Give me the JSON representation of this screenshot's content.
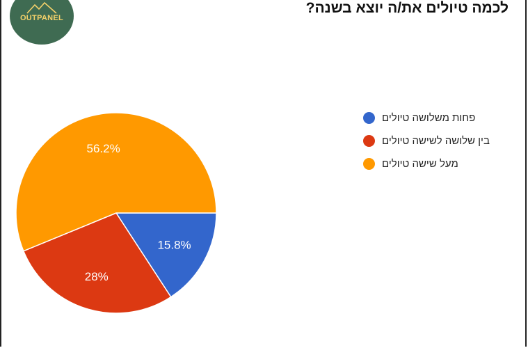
{
  "logo": {
    "text": "OUTPANEL"
  },
  "chart_data": {
    "type": "pie",
    "title": "לכמה טיולים את/ה יוצא בשנה?",
    "legend_position": "right",
    "slices": [
      {
        "label": "פחות משלושה טיולים",
        "value": 15.8,
        "display": "15.8%",
        "color": "#3366cc"
      },
      {
        "label": "בין שלושה לשישה טיולים",
        "value": 28,
        "display": "28%",
        "color": "#dc3912"
      },
      {
        "label": "מעל שישה טיולים",
        "value": 56.2,
        "display": "56.2%",
        "color": "#ff9900"
      }
    ]
  }
}
